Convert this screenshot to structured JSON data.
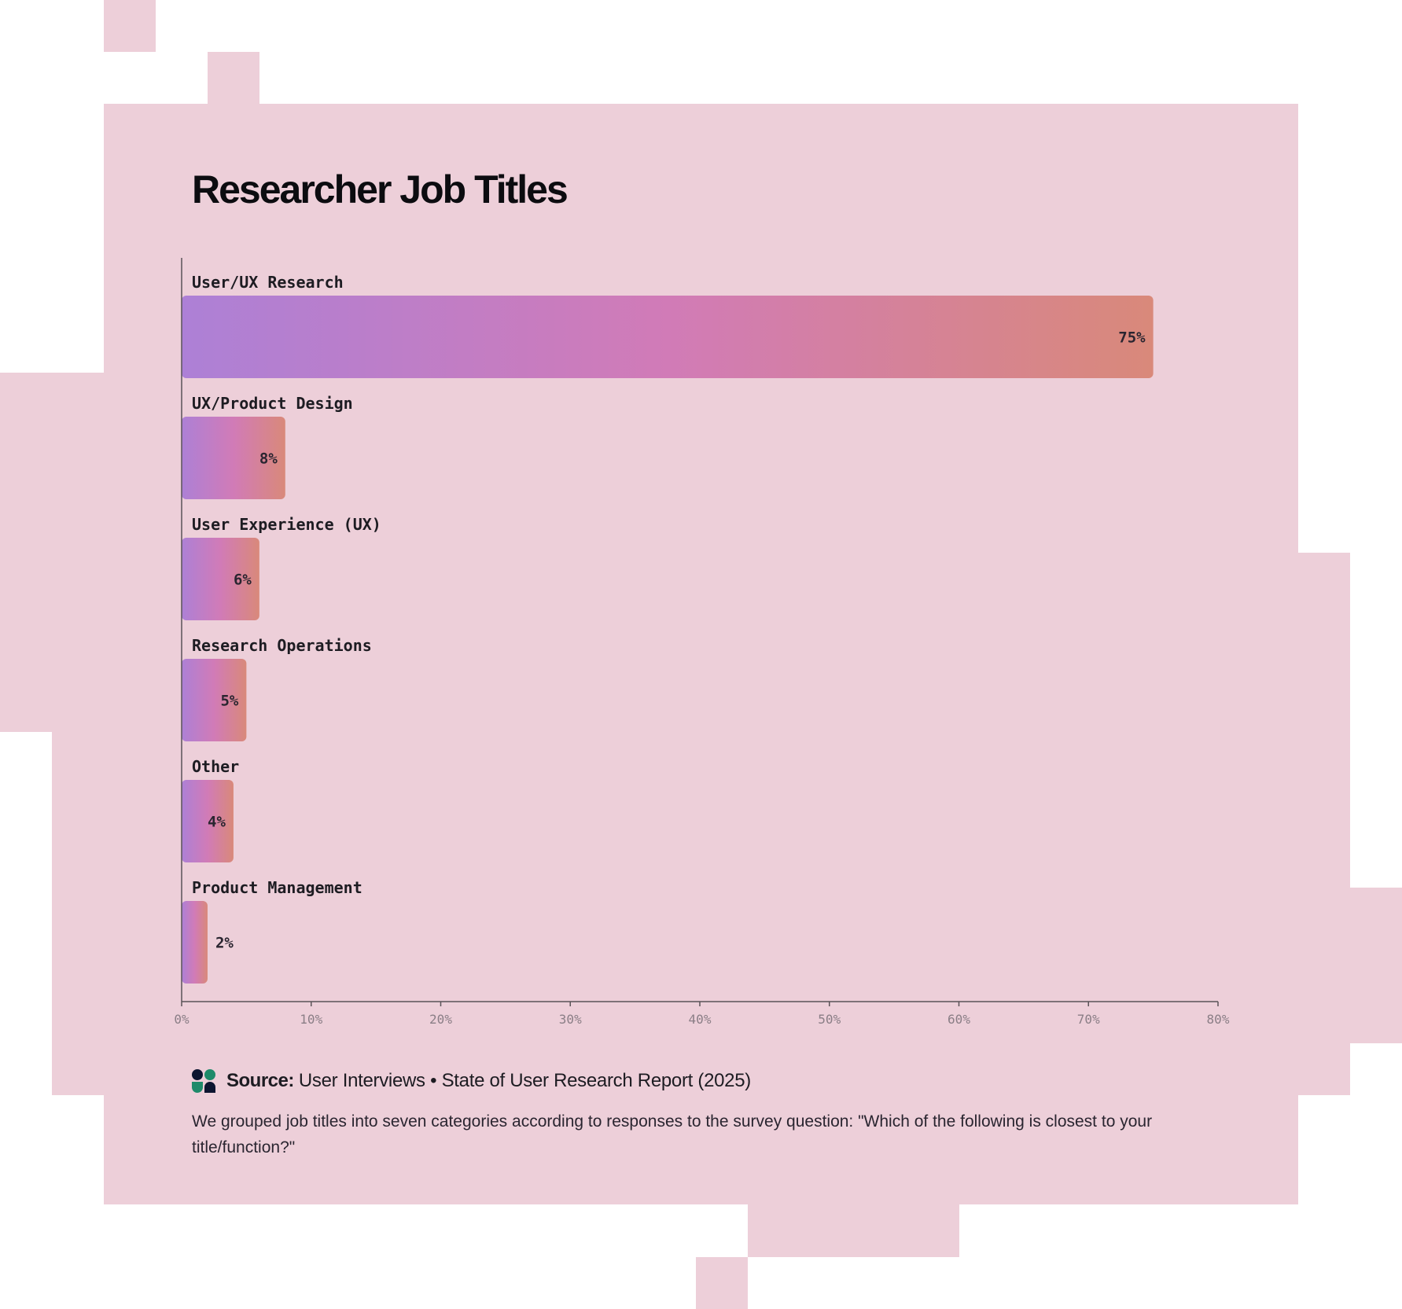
{
  "chart_data": {
    "type": "bar",
    "orientation": "horizontal",
    "title": "Researcher Job Titles",
    "categories": [
      "User/UX Research",
      "UX/Product Design",
      "User Experience (UX)",
      "Research Operations",
      "Other",
      "Product Management"
    ],
    "values": [
      75,
      8,
      6,
      5,
      4,
      2
    ],
    "value_labels": [
      "75%",
      "8%",
      "6%",
      "5%",
      "4%",
      "2%"
    ],
    "xlim": [
      0,
      80
    ],
    "x_ticks": [
      0,
      10,
      20,
      30,
      40,
      50,
      60,
      70,
      80
    ],
    "x_tick_labels": [
      "0%",
      "10%",
      "20%",
      "30%",
      "40%",
      "50%",
      "60%",
      "70%",
      "80%"
    ],
    "gradient_colors": [
      "#ad80d6",
      "#d17bb7",
      "#d9897a"
    ],
    "grid": false,
    "legend": "none"
  },
  "source": {
    "label": "Source:",
    "text": "User Interviews • State of User Research Report (2025)"
  },
  "note": "We grouped job titles into seven categories according to responses to the survey question: \"Which of the following is closest to your title/function?\""
}
